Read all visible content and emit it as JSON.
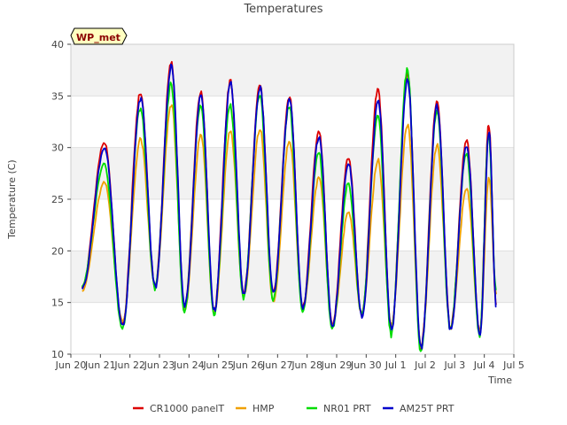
{
  "chart_data": {
    "type": "line",
    "title": "Temperatures",
    "xlabel": "Time",
    "ylabel": "Temperature (C)",
    "ylim": [
      10,
      40
    ],
    "xlim": [
      0,
      15
    ],
    "x_tick_values": [
      0,
      1,
      2,
      3,
      4,
      5,
      6,
      7,
      8,
      9,
      10,
      11,
      12,
      13,
      14,
      15
    ],
    "x_tick_labels": [
      "Jun 20",
      "Jun 21",
      "Jun 22",
      "Jun 23",
      "Jun 24",
      "Jun 25",
      "Jun 26",
      "Jun 27",
      "Jun 28",
      "Jun 29",
      "Jun 30",
      "Jul 1",
      "Jul 2",
      "Jul 3",
      "Jul 4",
      "Jul 5"
    ],
    "y_ticks": [
      10,
      15,
      20,
      25,
      30,
      35,
      40
    ],
    "grid": true,
    "legend_position": "bottom",
    "annotation": "WP_met",
    "x_units": "days since Jun 20 00:00",
    "day_min_x": [
      0.38,
      1.75,
      2.85,
      3.85,
      4.85,
      5.85,
      6.85,
      7.85,
      8.85,
      9.85,
      10.85,
      11.85,
      12.85,
      13.85,
      14.4
    ],
    "series": [
      {
        "name": "CR1000 panelT",
        "color": "#dd0000",
        "offset": 0.0,
        "max": [
          30.5,
          35.3,
          38.2,
          35.5,
          36.4,
          36.1,
          35.0,
          31.6,
          29.1,
          35.6,
          37.0,
          34.6,
          30.8,
          32.2
        ],
        "min": [
          16.5,
          12.8,
          16.5,
          14.5,
          14.2,
          15.8,
          15.8,
          14.5,
          12.8,
          13.8,
          12.5,
          10.5,
          12.5,
          12.0,
          14.8
        ]
      },
      {
        "name": "HMP",
        "color": "#f0a000",
        "offset": 0.03,
        "max": [
          26.6,
          30.8,
          34.2,
          31.3,
          31.6,
          31.8,
          30.7,
          27.1,
          23.8,
          28.8,
          32.3,
          30.3,
          26.1,
          27.1
        ],
        "min": [
          16.2,
          13.2,
          16.5,
          14.2,
          14.0,
          15.6,
          15.0,
          14.4,
          12.8,
          13.9,
          12.8,
          10.8,
          12.6,
          12.1,
          15.8
        ]
      },
      {
        "name": "NR01 PRT",
        "color": "#00dd00",
        "offset": -0.05,
        "max": [
          28.5,
          33.8,
          36.1,
          34.0,
          34.1,
          35.2,
          34.0,
          29.6,
          26.5,
          33.1,
          37.6,
          33.5,
          29.5,
          31.2
        ],
        "min": [
          16.6,
          12.5,
          16.4,
          14.1,
          13.8,
          15.5,
          15.3,
          14.2,
          12.4,
          13.9,
          11.9,
          10.0,
          12.5,
          11.8,
          16.2
        ]
      },
      {
        "name": "AM25T PRT",
        "color": "#0000cc",
        "offset": 0.06,
        "max": [
          30.0,
          34.8,
          38.0,
          35.0,
          36.2,
          35.8,
          34.6,
          31.0,
          28.5,
          34.5,
          36.5,
          34.0,
          30.2,
          31.5
        ],
        "min": [
          16.4,
          12.7,
          16.5,
          14.6,
          14.2,
          15.8,
          15.9,
          14.5,
          12.7,
          13.6,
          12.4,
          10.6,
          12.4,
          11.9,
          14.6
        ]
      }
    ]
  }
}
